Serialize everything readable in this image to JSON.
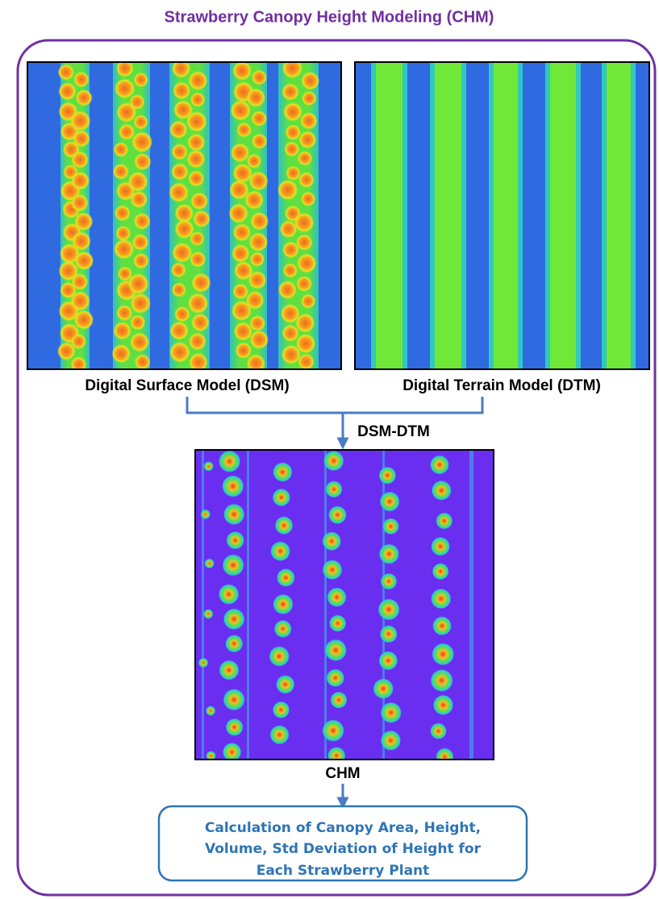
{
  "title": "Strawberry Canopy Height Modeling (CHM)",
  "panels": {
    "dsm": {
      "label": "Digital Surface Model (DSM)"
    },
    "dtm": {
      "label": "Digital Terrain Model (DTM)"
    },
    "chm": {
      "label": "CHM"
    }
  },
  "operation": "DSM-DTM",
  "output": {
    "lines": [
      "Calculation of Canopy Area, Height,",
      "Volume, Std Deviation of Height for",
      "Each Strawberry Plant"
    ]
  }
}
